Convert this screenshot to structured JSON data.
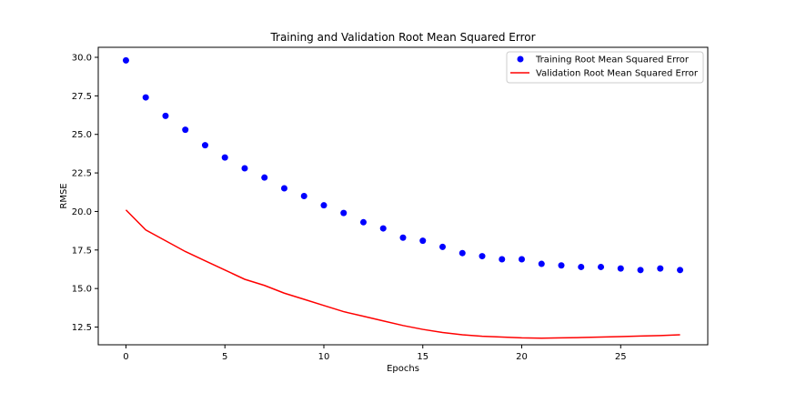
{
  "chart_data": {
    "type": "line",
    "title": "Training and Validation Root Mean Squared Error",
    "xlabel": "Epochs",
    "ylabel": "RMSE",
    "xlim": [
      -1.4,
      29.4
    ],
    "ylim": [
      11.35,
      30.65
    ],
    "xticks": [
      0,
      5,
      10,
      15,
      20,
      25
    ],
    "yticks": [
      12.5,
      15.0,
      17.5,
      20.0,
      22.5,
      25.0,
      27.5,
      30.0
    ],
    "grid": false,
    "legend_position": "top-right",
    "series": [
      {
        "name": "Training Root Mean Squared Error",
        "style": "markers",
        "color": "#0000ff",
        "x": [
          0,
          1,
          2,
          3,
          4,
          5,
          6,
          7,
          8,
          9,
          10,
          11,
          12,
          13,
          14,
          15,
          16,
          17,
          18,
          19,
          20,
          21,
          22,
          23,
          24,
          25,
          26,
          27,
          28
        ],
        "y": [
          29.8,
          27.4,
          26.2,
          25.3,
          24.3,
          23.5,
          22.8,
          22.2,
          21.5,
          21.0,
          20.4,
          19.9,
          19.3,
          18.9,
          18.3,
          18.1,
          17.7,
          17.3,
          17.1,
          16.9,
          16.9,
          16.6,
          16.5,
          16.4,
          16.4,
          16.3,
          16.2,
          16.3,
          16.2
        ]
      },
      {
        "name": "Validation Root Mean Squared Error",
        "style": "line",
        "color": "#ff0000",
        "x": [
          0,
          1,
          2,
          3,
          4,
          5,
          6,
          7,
          8,
          9,
          10,
          11,
          12,
          13,
          14,
          15,
          16,
          17,
          18,
          19,
          20,
          21,
          22,
          23,
          24,
          25,
          26,
          27,
          28
        ],
        "y": [
          20.1,
          18.8,
          18.1,
          17.4,
          16.8,
          16.2,
          15.6,
          15.2,
          14.7,
          14.3,
          13.9,
          13.5,
          13.2,
          12.9,
          12.6,
          12.35,
          12.15,
          12.0,
          11.9,
          11.85,
          11.8,
          11.78,
          11.8,
          11.82,
          11.85,
          11.88,
          11.92,
          11.95,
          12.0
        ]
      }
    ]
  }
}
